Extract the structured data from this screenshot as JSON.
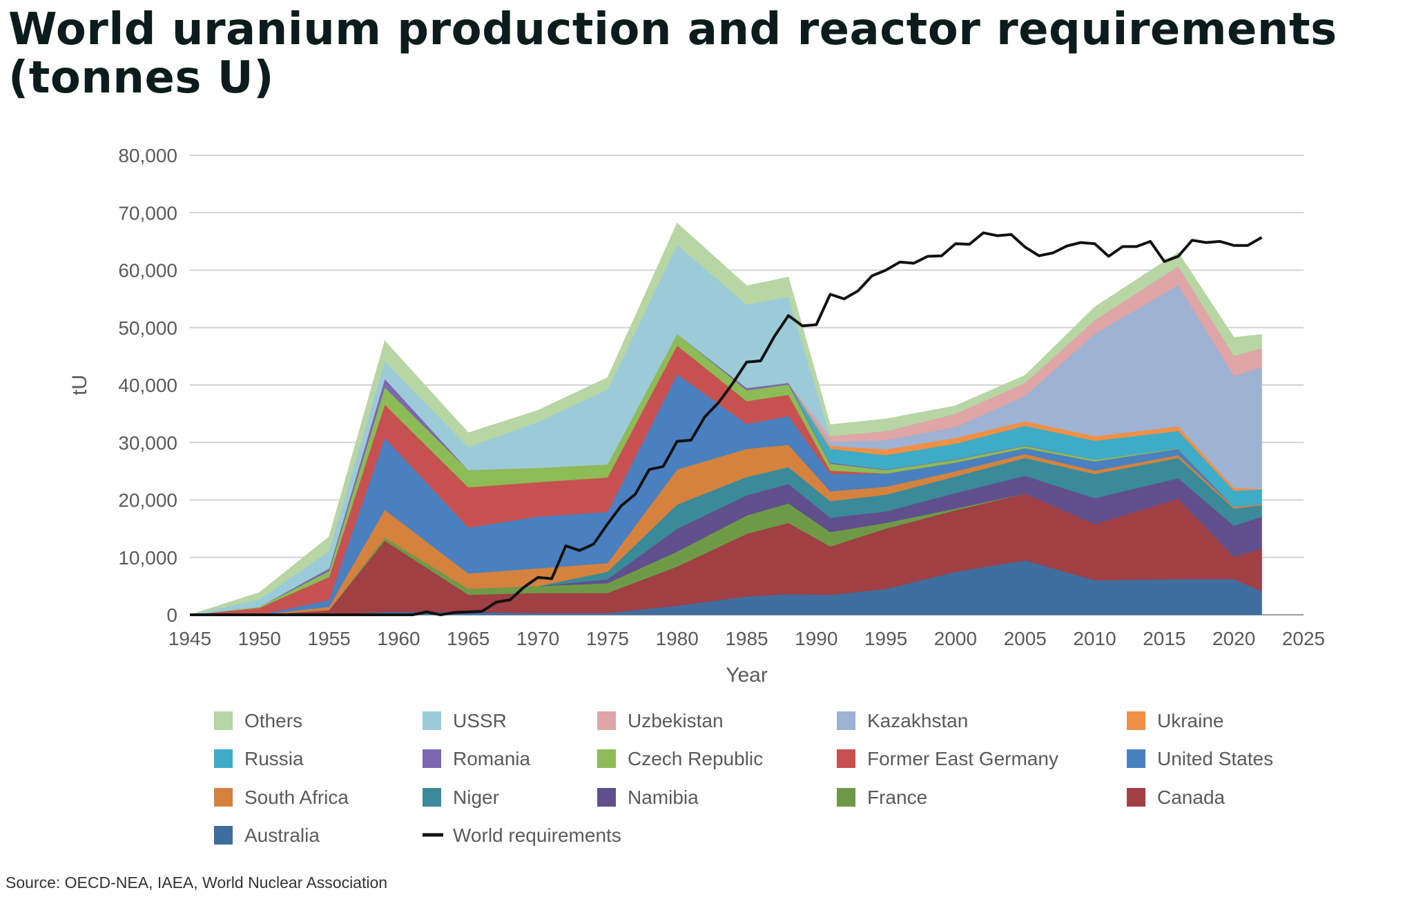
{
  "title_line1": "World uranium production and reactor requirements",
  "title_line2": "(tonnes U)",
  "source": "Source: OECD-NEA, IAEA, World Nuclear Association",
  "chart_data": {
    "type": "area",
    "stacked": true,
    "xlabel": "Year",
    "ylabel": "tU",
    "xlim": [
      1945,
      2025
    ],
    "ylim": [
      0,
      80000
    ],
    "x_ticks": [
      1945,
      1950,
      1955,
      1960,
      1965,
      1970,
      1975,
      1980,
      1985,
      1990,
      1995,
      2000,
      2005,
      2010,
      2015,
      2020,
      2025
    ],
    "x_tick_labels": [
      "1945",
      "1950",
      "1955",
      "1960",
      "1965",
      "1970",
      "1975",
      "1980",
      "1985",
      "1990",
      "1995",
      "2000",
      "2005",
      "2010",
      "2015",
      "2020",
      "2025"
    ],
    "y_ticks": [
      0,
      10000,
      20000,
      30000,
      40000,
      50000,
      60000,
      70000,
      80000
    ],
    "y_tick_labels": [
      "0",
      "10,000",
      "20,000",
      "30,000",
      "40,000",
      "50,000",
      "60,000",
      "70,000",
      "80,000"
    ],
    "grid": true,
    "legend_position": "bottom",
    "legend_order": [
      "Others",
      "USSR",
      "Uzbekistan",
      "Kazakhstan",
      "Ukraine",
      "Russia",
      "Romania",
      "Czech Republic",
      "Former East Germany",
      "United States",
      "South Africa",
      "Niger",
      "Namibia",
      "France",
      "Canada",
      "Australia",
      "World requirements"
    ],
    "key_years": [
      1945,
      1950,
      1955,
      1959,
      1965,
      1970,
      1975,
      1980,
      1985,
      1988,
      1991,
      1995,
      2000,
      2005,
      2010,
      2016,
      2020,
      2022
    ],
    "series": [
      {
        "name": "Australia",
        "color": "#3f6e9e",
        "values": [
          0,
          0,
          0,
          500,
          500,
          300,
          300,
          1600,
          3200,
          3600,
          3500,
          4500,
          7500,
          9500,
          6000,
          6200,
          6200,
          4100
        ]
      },
      {
        "name": "Canada",
        "color": "#a03f44",
        "values": [
          0,
          0,
          800,
          12400,
          3000,
          3500,
          3500,
          6800,
          10900,
          12400,
          8400,
          10500,
          10700,
          11600,
          9800,
          14000,
          3900,
          7400
        ]
      },
      {
        "name": "France",
        "color": "#6e9a48",
        "values": [
          0,
          0,
          0,
          500,
          1000,
          1200,
          1700,
          2600,
          3200,
          3400,
          2500,
          1000,
          300,
          0,
          0,
          0,
          0,
          0
        ]
      },
      {
        "name": "Namibia",
        "color": "#614f8d",
        "values": [
          0,
          0,
          0,
          0,
          0,
          0,
          700,
          4000,
          3500,
          3400,
          2500,
          2000,
          2700,
          3100,
          4500,
          3600,
          5400,
          5600
        ]
      },
      {
        "name": "Niger",
        "color": "#3a8a99",
        "values": [
          0,
          0,
          0,
          0,
          0,
          0,
          1300,
          4200,
          3200,
          2900,
          2900,
          2900,
          2900,
          3100,
          4200,
          3500,
          3000,
          2000
        ]
      },
      {
        "name": "South Africa",
        "color": "#d4823e",
        "values": [
          0,
          0,
          600,
          4900,
          2700,
          3100,
          1500,
          6100,
          4900,
          3900,
          1700,
          1400,
          900,
          700,
          600,
          500,
          300,
          200
        ]
      },
      {
        "name": "United States",
        "color": "#4a80c0",
        "values": [
          0,
          0,
          1200,
          12500,
          8000,
          9000,
          8900,
          16600,
          4300,
          5000,
          3000,
          2300,
          1500,
          1000,
          1600,
          1100,
          0,
          0
        ]
      },
      {
        "name": "Former East Germany",
        "color": "#c75150",
        "values": [
          0,
          1200,
          4000,
          5800,
          7000,
          6000,
          6000,
          5000,
          4000,
          3700,
          600,
          0,
          0,
          0,
          0,
          0,
          0,
          0
        ]
      },
      {
        "name": "Czech Republic",
        "color": "#8dbb55",
        "values": [
          0,
          200,
          1000,
          3000,
          3000,
          2500,
          2300,
          2000,
          1900,
          1800,
          1200,
          600,
          500,
          400,
          300,
          100,
          0,
          0
        ]
      },
      {
        "name": "Romania",
        "color": "#7d67ae",
        "values": [
          0,
          0,
          500,
          1500,
          0,
          0,
          0,
          0,
          400,
          300,
          200,
          100,
          100,
          100,
          0,
          0,
          0,
          0
        ]
      },
      {
        "name": "Russia",
        "color": "#3eacc6",
        "values": [
          0,
          0,
          0,
          0,
          0,
          0,
          0,
          0,
          0,
          0,
          2400,
          2500,
          2700,
          3400,
          3300,
          3000,
          2800,
          2500
        ]
      },
      {
        "name": "Ukraine",
        "color": "#f09045",
        "values": [
          0,
          0,
          0,
          0,
          0,
          0,
          0,
          0,
          0,
          0,
          500,
          1000,
          1000,
          800,
          800,
          800,
          500,
          100
        ]
      },
      {
        "name": "Kazakhstan",
        "color": "#9eb2d3",
        "values": [
          0,
          0,
          0,
          0,
          0,
          0,
          0,
          0,
          0,
          0,
          700,
          1600,
          1900,
          4400,
          17800,
          24600,
          19500,
          21200
        ]
      },
      {
        "name": "Uzbekistan",
        "color": "#dfa5a7",
        "values": [
          0,
          0,
          0,
          0,
          0,
          0,
          0,
          0,
          0,
          0,
          1000,
          1600,
          2300,
          2300,
          2400,
          3300,
          3500,
          3300
        ]
      },
      {
        "name": "USSR",
        "color": "#9bcbd8",
        "values": [
          0,
          1300,
          3000,
          3000,
          4000,
          8000,
          13000,
          15500,
          14500,
          15000,
          0,
          0,
          0,
          0,
          0,
          0,
          0,
          0
        ]
      },
      {
        "name": "Others",
        "color": "#b8d5a4",
        "values": [
          0,
          1200,
          2500,
          3600,
          2500,
          2000,
          2100,
          3800,
          3300,
          3400,
          2000,
          2100,
          1400,
          1300,
          2300,
          2400,
          3200,
          2400
        ]
      }
    ],
    "line": {
      "name": "World requirements",
      "color": "#111111",
      "x": [
        1945,
        1956,
        1961,
        1962,
        1963,
        1964,
        1966,
        1967,
        1968,
        1969,
        1970,
        1971,
        1972,
        1973,
        1974,
        1975,
        1976,
        1977,
        1978,
        1979,
        1980,
        1981,
        1982,
        1983,
        1984,
        1985,
        1986,
        1987,
        1988,
        1989,
        1990,
        1991,
        1992,
        1993,
        1994,
        1995,
        1996,
        1997,
        1998,
        1999,
        2000,
        2001,
        2002,
        2003,
        2004,
        2005,
        2006,
        2007,
        2008,
        2009,
        2010,
        2011,
        2012,
        2013,
        2014,
        2015,
        2016,
        2017,
        2018,
        2019,
        2020,
        2021,
        2022
      ],
      "y": [
        0,
        0,
        0,
        500,
        0,
        400,
        600,
        2200,
        2600,
        4800,
        6500,
        6300,
        12000,
        11200,
        12300,
        15800,
        19000,
        21000,
        25300,
        25800,
        30200,
        30400,
        34500,
        37000,
        40300,
        44000,
        44200,
        48500,
        52100,
        50300,
        50500,
        55800,
        55000,
        56400,
        59000,
        60000,
        61400,
        61200,
        62400,
        62500,
        64600,
        64500,
        66500,
        66000,
        66200,
        64000,
        62500,
        63000,
        64200,
        64800,
        64600,
        62400,
        64100,
        64100,
        65000,
        61500,
        62400,
        65200,
        64800,
        65000,
        64300,
        64300,
        65700
      ]
    }
  }
}
